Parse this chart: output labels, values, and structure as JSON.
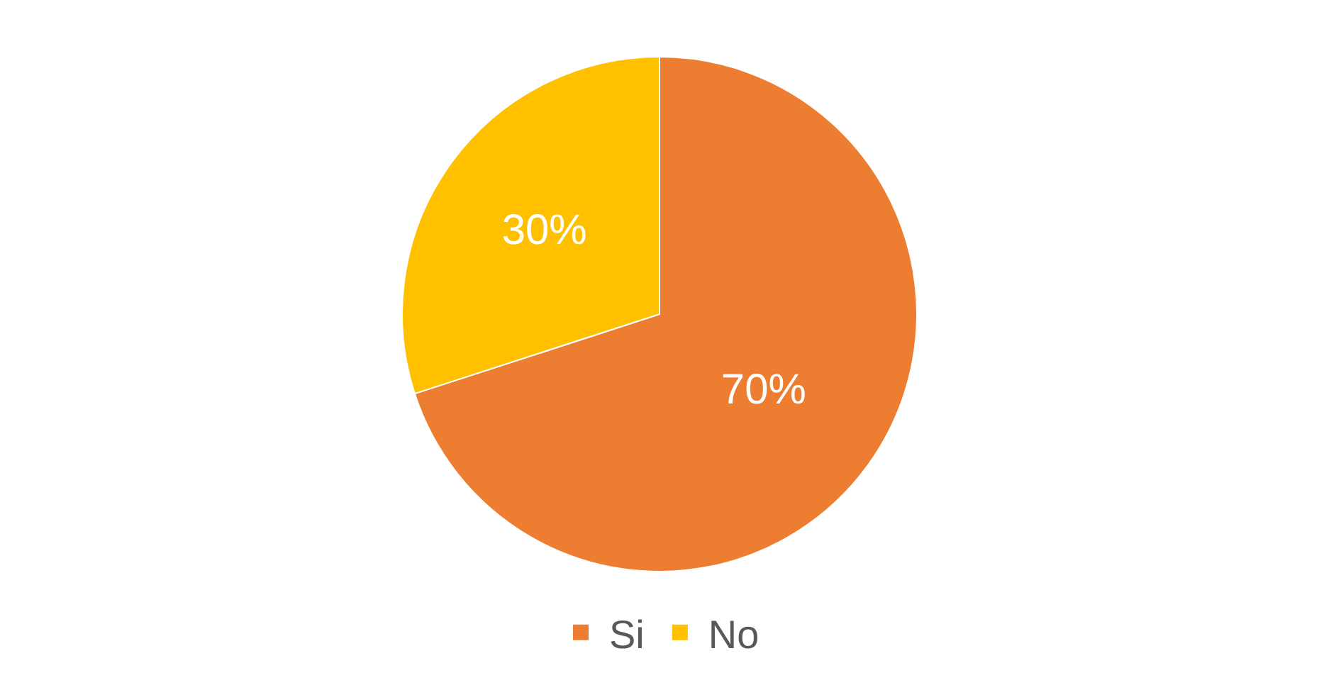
{
  "chart_data": {
    "type": "pie",
    "categories": [
      "Si",
      "No"
    ],
    "values": [
      70,
      30
    ],
    "colors": [
      "#ed7d31",
      "#ffc000"
    ],
    "value_labels": [
      "70%",
      "30%"
    ],
    "legend": "bottom"
  }
}
